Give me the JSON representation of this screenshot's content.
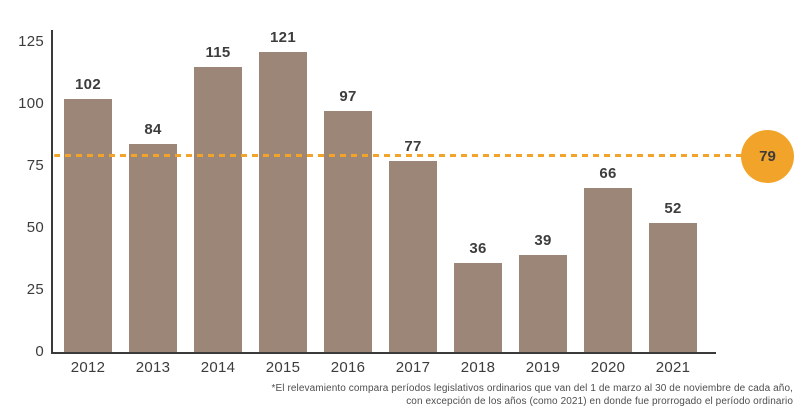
{
  "chart_data": {
    "type": "bar",
    "title": "",
    "xlabel": "",
    "ylabel": "",
    "categories": [
      "2012",
      "2013",
      "2014",
      "2015",
      "2016",
      "2017",
      "2018",
      "2019",
      "2020",
      "2021"
    ],
    "values": [
      102,
      84,
      115,
      121,
      97,
      77,
      36,
      39,
      66,
      52
    ],
    "ylim": [
      0,
      125
    ],
    "y_ticks": [
      0,
      25,
      50,
      75,
      100,
      125
    ],
    "grid": false,
    "legend": "none",
    "bar_color": "#9c8678",
    "reference_line": {
      "value": 79,
      "label": "79",
      "color": "#f2a42a",
      "style": "dashed"
    }
  },
  "footnote": {
    "line1": "*El relevamiento compara períodos legislativos ordinarios que van del 1 de marzo al 30 de noviembre de cada año,",
    "line2": "con excepción de los años (como 2021) en donde fue prorrogado el período ordinario"
  }
}
